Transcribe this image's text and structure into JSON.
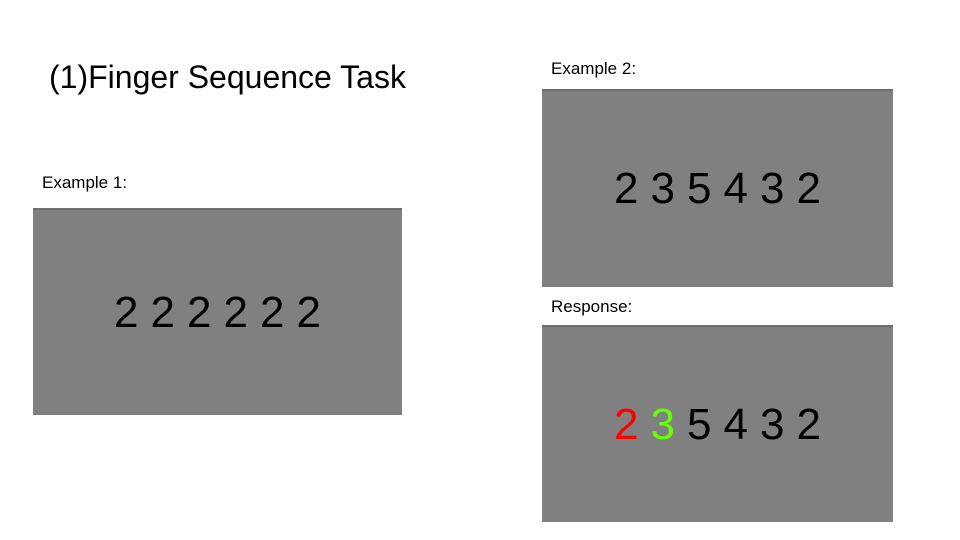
{
  "title": "(1)Finger Sequence Task",
  "example1": {
    "label": "Example 1:",
    "digits": [
      "2",
      "2",
      "2",
      "2",
      "2",
      "2"
    ]
  },
  "example2": {
    "label": "Example 2:",
    "digits": [
      "2",
      "3",
      "5",
      "4",
      "3",
      "2"
    ]
  },
  "response": {
    "label": "Response:",
    "digits": [
      "2",
      "3",
      "5",
      "4",
      "3",
      "2"
    ]
  },
  "colors": {
    "panel": "#808080",
    "digit_default": "#000000",
    "response_error": "#ff0000",
    "response_correct": "#66ff00"
  }
}
